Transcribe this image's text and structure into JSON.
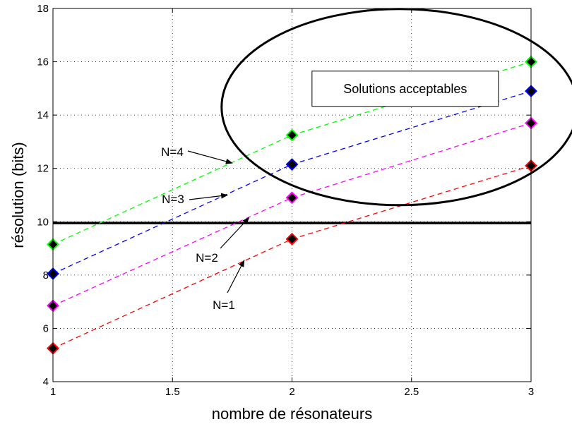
{
  "chart_data": {
    "type": "line",
    "title": "",
    "xlabel": "nombre de résonateurs",
    "ylabel": "résolution (bits)",
    "xlim": [
      1,
      3
    ],
    "ylim": [
      4,
      18
    ],
    "xticks": [
      1,
      1.5,
      2,
      2.5,
      3
    ],
    "xtick_labels": [
      "1",
      "1.5",
      "2",
      "2.5",
      "3"
    ],
    "yticks": [
      4,
      6,
      8,
      10,
      12,
      14,
      16,
      18
    ],
    "ytick_labels": [
      "4",
      "6",
      "8",
      "10",
      "12",
      "14",
      "16",
      "18"
    ],
    "grid": true,
    "x": [
      1,
      2,
      3
    ],
    "series": [
      {
        "name": "N=1",
        "values": [
          5.25,
          9.35,
          12.1
        ],
        "color": "#ff0000"
      },
      {
        "name": "N=2",
        "values": [
          6.85,
          10.9,
          13.7
        ],
        "color": "#ff00ff"
      },
      {
        "name": "N=3",
        "values": [
          8.05,
          12.15,
          14.9
        ],
        "color": "#0000ff"
      },
      {
        "name": "N=4",
        "values": [
          9.15,
          13.25,
          16.0
        ],
        "color": "#00ff00"
      }
    ],
    "threshold": {
      "y": 9.95,
      "color": "#000000"
    },
    "annotations": [
      {
        "text": "N=1",
        "series": "N=1",
        "arrow_target": [
          1.8,
          8.55
        ]
      },
      {
        "text": "N=2",
        "series": "N=2",
        "arrow_target": [
          1.82,
          10.15
        ]
      },
      {
        "text": "N=3",
        "series": "N=3",
        "arrow_target": [
          1.73,
          11.0
        ]
      },
      {
        "text": "N=4",
        "series": "N=4",
        "arrow_target": [
          1.75,
          12.2
        ]
      }
    ],
    "region_label": "Solutions acceptables",
    "marker": "diamond",
    "marker_fill": "#000000"
  }
}
